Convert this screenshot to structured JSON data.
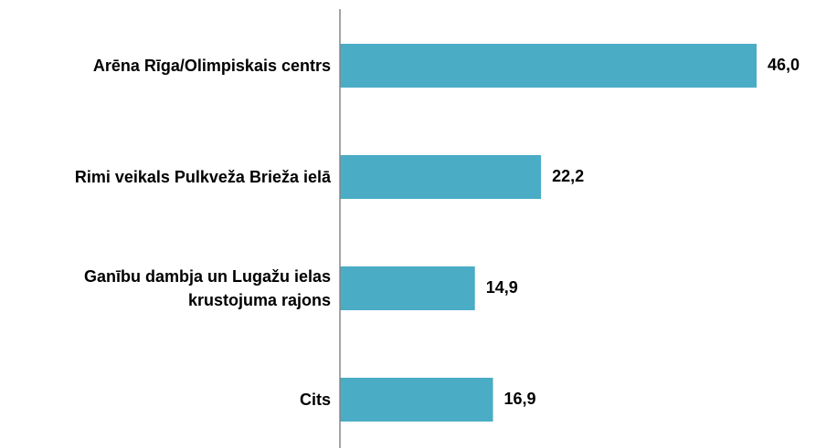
{
  "chart_data": {
    "type": "barh",
    "categories": [
      "Arēna Rīga/Olimpiskais centrs",
      "Rimi veikals Pulkveža Brieža ielā",
      "Ganību dambja un Lugažu ielas krustojuma rajons",
      "Cits"
    ],
    "values": [
      46.0,
      22.2,
      14.9,
      16.9
    ],
    "value_labels": [
      "46,0",
      "22,2",
      "14,9",
      "16,9"
    ],
    "color": "#4bacc6",
    "xlim": [
      0,
      46
    ]
  }
}
